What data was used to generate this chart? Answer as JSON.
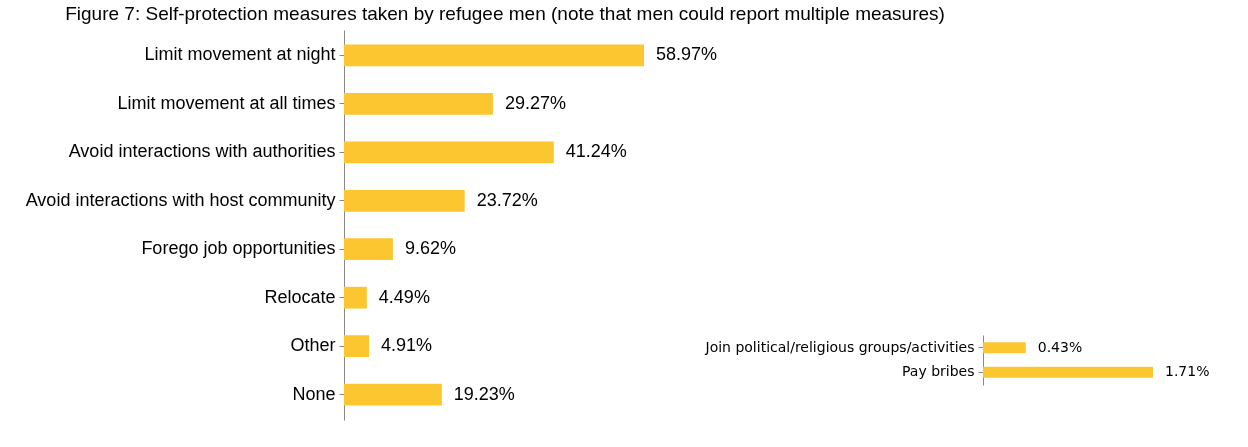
{
  "chart_data": [
    {
      "type": "bar",
      "orientation": "horizontal",
      "title": "Figure 7: Self-protection measures taken by refugee men (note that men could report multiple measures)",
      "categories": [
        "Limit movement at night",
        "Limit movement at all times",
        "Avoid interactions with authorities",
        "Avoid interactions with host community",
        "Forego job opportunities",
        "Relocate",
        "Other",
        "None"
      ],
      "values": [
        58.97,
        29.27,
        41.24,
        23.72,
        9.62,
        4.49,
        4.91,
        19.23
      ],
      "value_labels": [
        "58.97%",
        "29.27%",
        "41.24%",
        "23.72%",
        "9.62%",
        "4.49%",
        "4.91%",
        "19.23%"
      ],
      "color": "#fcc630",
      "tick_labels": "y"
    },
    {
      "type": "bar",
      "orientation": "horizontal",
      "categories": [
        "Join political/religious groups/activities",
        "Pay bribes"
      ],
      "values": [
        0.43,
        1.71
      ],
      "value_labels": [
        "0.43%",
        "1.71%"
      ],
      "color": "#fcc630",
      "tick_labels": "y"
    }
  ]
}
